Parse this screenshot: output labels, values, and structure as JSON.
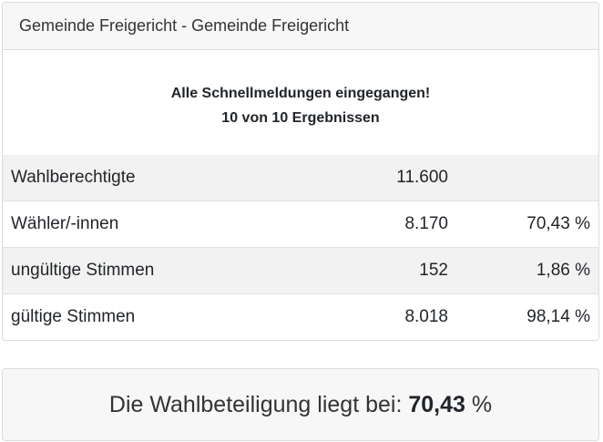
{
  "header": {
    "title": "Gemeinde Freigericht - Gemeinde Freigericht"
  },
  "status": [
    "Alle Schnellmeldungen eingegangen!",
    "10 von 10 Ergebnissen"
  ],
  "table": {
    "rows": [
      [
        "Wahlberechtigte",
        "11.600",
        ""
      ],
      [
        "Wähler/-innen",
        "8.170",
        "70,43 %"
      ],
      [
        "ungültige Stimmen",
        "152",
        "1,86 %"
      ],
      [
        "gültige Stimmen",
        "8.018",
        "98,14 %"
      ]
    ]
  },
  "footer": {
    "text": "Die Wahlbeteiligung liegt bei:",
    "value": "70,43",
    "unit": "%"
  }
}
